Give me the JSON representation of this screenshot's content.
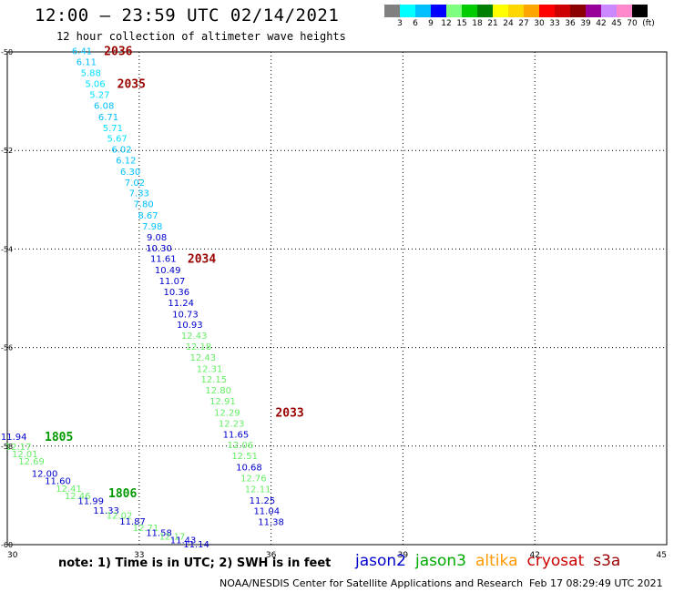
{
  "header": {
    "title": "12:00 – 23:59 UTC 02/14/2021",
    "subtitle": "12 hour collection of altimeter wave heights"
  },
  "colorbar": {
    "colors": [
      "#808080",
      "#00ffff",
      "#00bfff",
      "#0000ff",
      "#7fff7f",
      "#00cc00",
      "#008000",
      "#ffff00",
      "#ffd700",
      "#ffa500",
      "#ff0000",
      "#cc0000",
      "#8b0000",
      "#990099",
      "#cc88ff",
      "#ff88cc",
      "#000000"
    ],
    "labels": [
      "3",
      "6",
      "9",
      "12",
      "15",
      "18",
      "21",
      "24",
      "27",
      "30",
      "33",
      "36",
      "39",
      "42",
      "45",
      "70",
      "(ft)"
    ]
  },
  "chart_data": {
    "type": "scatter",
    "title": "12:00 – 23:59 UTC 02/14/2021",
    "subtitle": "12 hour collection of altimeter wave heights",
    "xlim": [
      30,
      45
    ],
    "ylim": [
      -60,
      -50
    ],
    "x_ticks": [
      "30",
      "33",
      "36",
      "39",
      "42",
      "45"
    ],
    "y_ticks": [
      "-50",
      "-52",
      "-54",
      "-56",
      "-58",
      "-60"
    ],
    "grid": true,
    "unit": "ft",
    "series": [
      {
        "name": "jason2",
        "color": "#0000cc",
        "points": []
      },
      {
        "name": "jason3",
        "color": "#00aa00",
        "points": []
      },
      {
        "name": "altika",
        "color": "#ff9900",
        "points": []
      },
      {
        "name": "cryosat",
        "color": "#cc0000",
        "points": []
      },
      {
        "name": "s3a",
        "color": "#990000",
        "points": []
      }
    ],
    "points": [
      {
        "x": 31.7,
        "y": -49.97,
        "label": "6.41",
        "color": "#00c0ff"
      },
      {
        "x": 31.8,
        "y": -50.19,
        "label": "6.11",
        "color": "#00c0ff"
      },
      {
        "x": 31.9,
        "y": -50.42,
        "label": "5.88",
        "color": "#00e0ff"
      },
      {
        "x": 32.0,
        "y": -50.64,
        "label": "5.06",
        "color": "#00e0ff"
      },
      {
        "x": 32.1,
        "y": -50.86,
        "label": "5.27",
        "color": "#00e0ff"
      },
      {
        "x": 32.2,
        "y": -51.08,
        "label": "6.08",
        "color": "#00c0ff"
      },
      {
        "x": 32.3,
        "y": -51.31,
        "label": "6.71",
        "color": "#00c0ff"
      },
      {
        "x": 32.4,
        "y": -51.53,
        "label": "5.71",
        "color": "#00e0ff"
      },
      {
        "x": 32.5,
        "y": -51.75,
        "label": "5.67",
        "color": "#00e0ff"
      },
      {
        "x": 32.6,
        "y": -51.97,
        "label": "6.02",
        "color": "#00c0ff"
      },
      {
        "x": 32.7,
        "y": -52.19,
        "label": "6.12",
        "color": "#00c0ff"
      },
      {
        "x": 32.8,
        "y": -52.42,
        "label": "6.30",
        "color": "#00c0ff"
      },
      {
        "x": 32.9,
        "y": -52.64,
        "label": "7.02",
        "color": "#00c0ff"
      },
      {
        "x": 33.0,
        "y": -52.86,
        "label": "7.33",
        "color": "#00c0ff"
      },
      {
        "x": 33.1,
        "y": -53.08,
        "label": "7.80",
        "color": "#00c0ff"
      },
      {
        "x": 33.2,
        "y": -53.31,
        "label": "8.67",
        "color": "#00c0ff"
      },
      {
        "x": 33.3,
        "y": -53.53,
        "label": "7.98",
        "color": "#00c0ff"
      },
      {
        "x": 33.4,
        "y": -53.75,
        "label": "9.08",
        "color": "#0000cc"
      },
      {
        "x": 33.45,
        "y": -53.97,
        "label": "10.30",
        "color": "#0000cc"
      },
      {
        "x": 33.55,
        "y": -54.19,
        "label": "11.61",
        "color": "#0000cc"
      },
      {
        "x": 33.65,
        "y": -54.42,
        "label": "10.49",
        "color": "#0000cc"
      },
      {
        "x": 33.75,
        "y": -54.64,
        "label": "11.07",
        "color": "#0000cc"
      },
      {
        "x": 33.85,
        "y": -54.86,
        "label": "10.36",
        "color": "#0000cc"
      },
      {
        "x": 33.95,
        "y": -55.08,
        "label": "11.24",
        "color": "#0000cc"
      },
      {
        "x": 34.05,
        "y": -55.31,
        "label": "10.73",
        "color": "#0000cc"
      },
      {
        "x": 34.15,
        "y": -55.53,
        "label": "10.93",
        "color": "#0000cc"
      },
      {
        "x": 34.25,
        "y": -55.75,
        "label": "12.43",
        "color": "#66ee66"
      },
      {
        "x": 34.35,
        "y": -55.97,
        "label": "12.18",
        "color": "#66ee66"
      },
      {
        "x": 34.45,
        "y": -56.19,
        "label": "12.43",
        "color": "#66ee66"
      },
      {
        "x": 34.6,
        "y": -56.42,
        "label": "12.31",
        "color": "#66ee66"
      },
      {
        "x": 34.7,
        "y": -56.64,
        "label": "12.15",
        "color": "#66ee66"
      },
      {
        "x": 34.8,
        "y": -56.86,
        "label": "12.80",
        "color": "#66ee66"
      },
      {
        "x": 34.9,
        "y": -57.08,
        "label": "12.91",
        "color": "#66ee66"
      },
      {
        "x": 35.0,
        "y": -57.31,
        "label": "12.29",
        "color": "#66ee66"
      },
      {
        "x": 35.1,
        "y": -57.53,
        "label": "12.23",
        "color": "#66ee66"
      },
      {
        "x": 35.2,
        "y": -57.75,
        "label": "11.65",
        "color": "#0000cc"
      },
      {
        "x": 35.3,
        "y": -57.97,
        "label": "12.06",
        "color": "#66ee66"
      },
      {
        "x": 35.4,
        "y": -58.19,
        "label": "12.51",
        "color": "#66ee66"
      },
      {
        "x": 35.5,
        "y": -58.42,
        "label": "10.68",
        "color": "#0000cc"
      },
      {
        "x": 35.6,
        "y": -58.64,
        "label": "12.76",
        "color": "#66ee66"
      },
      {
        "x": 35.7,
        "y": -58.86,
        "label": "12.11",
        "color": "#66ee66"
      },
      {
        "x": 35.8,
        "y": -59.09,
        "label": "11.25",
        "color": "#0000cc"
      },
      {
        "x": 35.9,
        "y": -59.31,
        "label": "11.04",
        "color": "#0000cc"
      },
      {
        "x": 36.0,
        "y": -59.53,
        "label": "11.38",
        "color": "#0000cc"
      },
      {
        "x": 30.15,
        "y": -57.8,
        "label": "11.94",
        "color": "#0000cc"
      },
      {
        "x": 30.25,
        "y": -58.0,
        "label": "12.17",
        "color": "#66ee66"
      },
      {
        "x": 30.4,
        "y": -58.15,
        "label": "12.01",
        "color": "#66ee66"
      },
      {
        "x": 30.55,
        "y": -58.3,
        "label": "12.69",
        "color": "#66ee66"
      },
      {
        "x": 30.85,
        "y": -58.55,
        "label": "12.00",
        "color": "#0000cc"
      },
      {
        "x": 31.15,
        "y": -58.7,
        "label": "11.60",
        "color": "#0000cc"
      },
      {
        "x": 31.4,
        "y": -58.85,
        "label": "12.41",
        "color": "#66ee66"
      },
      {
        "x": 31.6,
        "y": -59.0,
        "label": "12.46",
        "color": "#66ee66"
      },
      {
        "x": 31.9,
        "y": -59.1,
        "label": "11.99",
        "color": "#0000cc"
      },
      {
        "x": 32.25,
        "y": -59.3,
        "label": "11.33",
        "color": "#0000cc"
      },
      {
        "x": 32.55,
        "y": -59.4,
        "label": "12.02",
        "color": "#66ee66"
      },
      {
        "x": 32.85,
        "y": -59.52,
        "label": "11.87",
        "color": "#0000cc"
      },
      {
        "x": 33.15,
        "y": -59.65,
        "label": "12.71",
        "color": "#66ee66"
      },
      {
        "x": 33.45,
        "y": -59.75,
        "label": "11.58",
        "color": "#0000cc"
      },
      {
        "x": 33.75,
        "y": -59.82,
        "label": "12.17",
        "color": "#66ee66"
      },
      {
        "x": 34.0,
        "y": -59.9,
        "label": "11.43",
        "color": "#0000cc"
      },
      {
        "x": 34.3,
        "y": -59.98,
        "label": "11.14",
        "color": "#0000cc"
      }
    ],
    "time_labels": [
      {
        "x": 32.2,
        "y": -49.97,
        "label": "2036",
        "color": "#990000"
      },
      {
        "x": 32.5,
        "y": -50.64,
        "label": "2035",
        "color": "#990000"
      },
      {
        "x": 34.1,
        "y": -54.19,
        "label": "2034",
        "color": "#990000"
      },
      {
        "x": 36.1,
        "y": -57.31,
        "label": "2033",
        "color": "#990000"
      },
      {
        "x": 30.85,
        "y": -57.8,
        "label": "1805",
        "color": "#009900"
      },
      {
        "x": 32.3,
        "y": -58.95,
        "label": "1806",
        "color": "#009900"
      }
    ]
  },
  "footer": {
    "note": "note: 1) Time is in UTC; 2) SWH is in feet",
    "satellites": [
      {
        "name": "jason2",
        "color": "#0000cc"
      },
      {
        "name": "jason3",
        "color": "#00aa00"
      },
      {
        "name": "altika",
        "color": "#ff9900"
      },
      {
        "name": "cryosat",
        "color": "#cc0000"
      },
      {
        "name": "s3a",
        "color": "#990000"
      }
    ],
    "credit": "NOAA/NESDIS Center for Satellite Applications and Research",
    "timestamp": "Feb 17 08:29:49 UTC 2021"
  }
}
